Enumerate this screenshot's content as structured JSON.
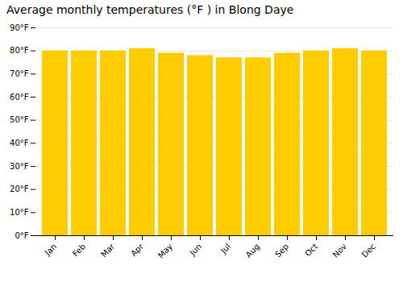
{
  "chart_data": {
    "type": "bar",
    "title": "Average monthly temperatures (°F ) in Blong Daye",
    "categories": [
      "Jan",
      "Feb",
      "Mar",
      "Apr",
      "May",
      "Jun",
      "Jul",
      "Aug",
      "Sep",
      "Oct",
      "Nov",
      "Dec"
    ],
    "values": [
      80,
      80,
      80,
      81,
      79,
      78,
      77,
      77,
      79,
      80,
      81,
      80
    ],
    "color": "#FFCC00",
    "ylim": [
      0,
      90
    ],
    "yticks": [
      {
        "value": 0,
        "label": "0°F"
      },
      {
        "value": 10,
        "label": "10°F"
      },
      {
        "value": 20,
        "label": "20°F"
      },
      {
        "value": 30,
        "label": "30°F"
      },
      {
        "value": 40,
        "label": "40°F"
      },
      {
        "value": 50,
        "label": "50°F"
      },
      {
        "value": 60,
        "label": "60°F"
      },
      {
        "value": 70,
        "label": "70°F"
      },
      {
        "value": 80,
        "label": "80°F"
      },
      {
        "value": 90,
        "label": "90°F"
      }
    ],
    "grid": true
  }
}
